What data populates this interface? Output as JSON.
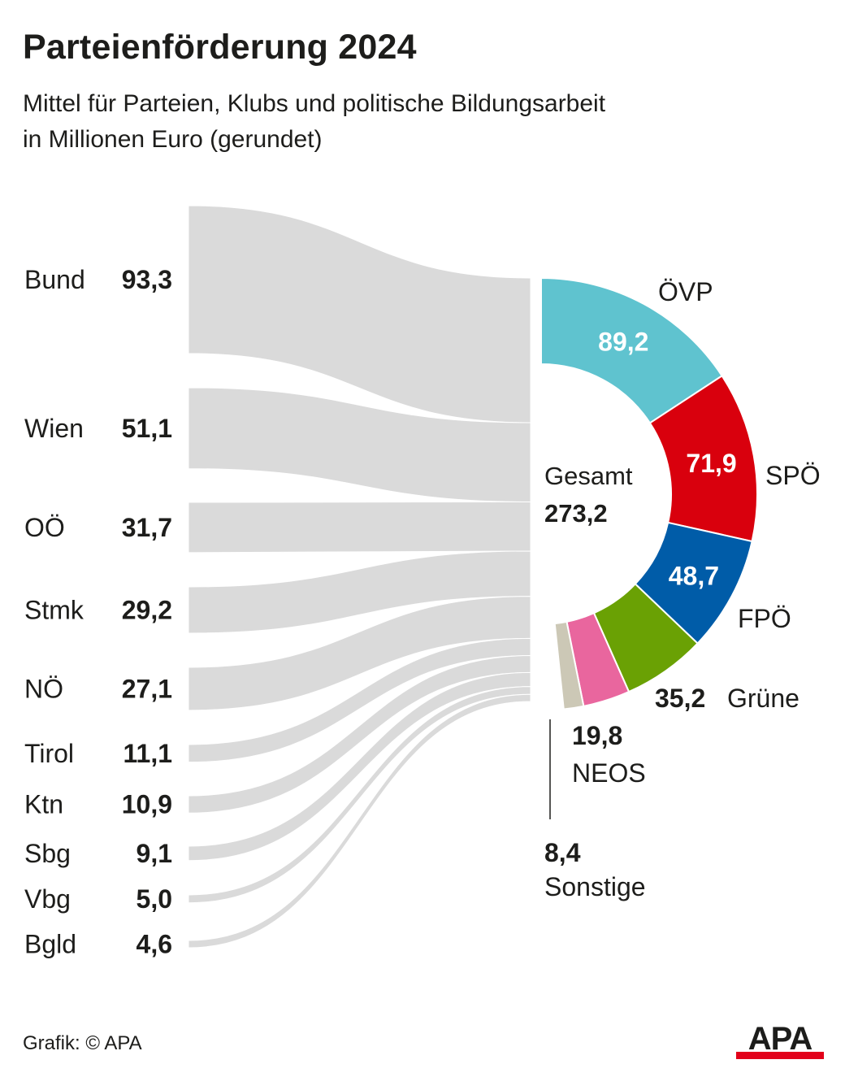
{
  "header": {
    "title": "Parteienförderung 2024",
    "subtitle_line1": "Mittel für Parteien, Klubs und politische Bildungsarbeit",
    "subtitle_line2": "in Millionen Euro (gerundet)"
  },
  "chart_data": {
    "type": "sankey",
    "title": "Parteienförderung 2024",
    "subtitle": "Mittel für Parteien, Klubs und politische Bildungsarbeit in Millionen Euro (gerundet)",
    "unit": "Millionen Euro",
    "sources": [
      {
        "name": "Bund",
        "value": 93.3,
        "label": "93,3"
      },
      {
        "name": "Wien",
        "value": 51.1,
        "label": "51,1"
      },
      {
        "name": "OÖ",
        "value": 31.7,
        "label": "31,7"
      },
      {
        "name": "Stmk",
        "value": 29.2,
        "label": "29,2"
      },
      {
        "name": "NÖ",
        "value": 27.1,
        "label": "27,1"
      },
      {
        "name": "Tirol",
        "value": 11.1,
        "label": "11,1"
      },
      {
        "name": "Ktn",
        "value": 10.9,
        "label": "10,9"
      },
      {
        "name": "Sbg",
        "value": 9.1,
        "label": "9,1"
      },
      {
        "name": "Vbg",
        "value": 5.0,
        "label": "5,0"
      },
      {
        "name": "Bgld",
        "value": 4.6,
        "label": "4,6"
      }
    ],
    "total": {
      "label": "Gesamt",
      "value": 273.2,
      "value_label": "273,2"
    },
    "targets": [
      {
        "name": "ÖVP",
        "value": 89.2,
        "label": "89,2",
        "color": "#5fc3cf"
      },
      {
        "name": "SPÖ",
        "value": 71.9,
        "label": "71,9",
        "color": "#d9000d"
      },
      {
        "name": "FPÖ",
        "value": 48.7,
        "label": "48,7",
        "color": "#005ca8"
      },
      {
        "name": "Grüne",
        "value": 35.2,
        "label": "35,2",
        "color": "#6aa104"
      },
      {
        "name": "NEOS",
        "value": 19.8,
        "label": "19,8",
        "color": "#e9669e"
      },
      {
        "name": "Sonstige",
        "value": 8.4,
        "label": "8,4",
        "color": "#ccc8b6"
      }
    ],
    "flow_color": "#dadada"
  },
  "footer": {
    "credit": "Grafik: © APA",
    "logo_text": "APA",
    "logo_color": "#e2001a"
  }
}
